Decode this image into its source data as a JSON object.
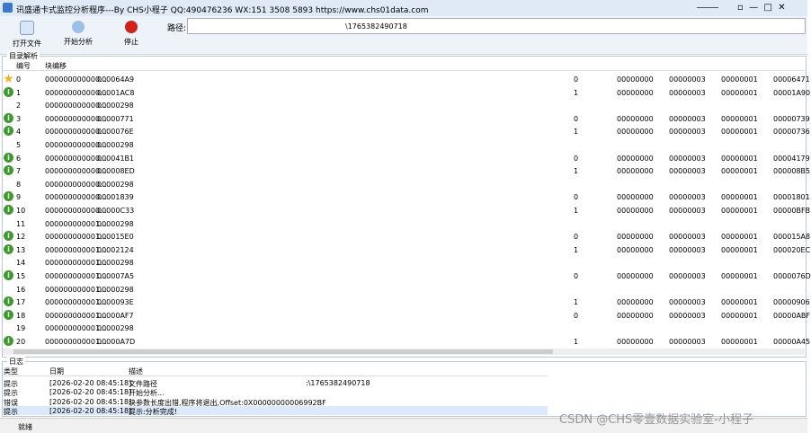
{
  "window": {
    "title": "讯盛通卡式监控分析程序---By CHS小程子 QQ:490476236 WX:151 3508 5893 https://www.chs01data.com"
  },
  "toolbar": {
    "buttons": [
      "打开文件",
      "开始分析",
      "停止"
    ],
    "path_label": "路径:",
    "path_value": "\\1765382490718"
  },
  "directory": {
    "title": "目录解析",
    "columns": [
      "编号",
      "块编移"
    ],
    "rows": [
      [
        "0",
        "000000000000...",
        "000064A9",
        "0",
        "00000000",
        "00000003",
        "00000001",
        "00006471"
      ],
      [
        "1",
        "000000000000...",
        "00001AC8",
        "1",
        "00000000",
        "00000003",
        "00000001",
        "00001A90"
      ],
      [
        "2",
        "000000000000...",
        "00000298"
      ],
      [
        "3",
        "000000000000...",
        "00000771",
        "0",
        "00000000",
        "00000003",
        "00000001",
        "00000739"
      ],
      [
        "4",
        "000000000000...",
        "0000076E",
        "1",
        "00000000",
        "00000003",
        "00000001",
        "00000736"
      ],
      [
        "5",
        "000000000000...",
        "00000298"
      ],
      [
        "6",
        "000000000000...",
        "000041B1",
        "0",
        "00000000",
        "00000003",
        "00000001",
        "00004179"
      ],
      [
        "7",
        "000000000000...",
        "000008ED",
        "1",
        "00000000",
        "00000003",
        "00000001",
        "000008B5"
      ],
      [
        "8",
        "000000000000...",
        "00000298"
      ],
      [
        "9",
        "000000000000...",
        "00001839",
        "0",
        "00000000",
        "00000003",
        "00000001",
        "00001801"
      ],
      [
        "10",
        "000000000000...",
        "00000C33",
        "1",
        "00000000",
        "00000003",
        "00000001",
        "00000BFB"
      ],
      [
        "11",
        "000000000001...",
        "00000298"
      ],
      [
        "12",
        "000000000001...",
        "000015E0",
        "0",
        "00000000",
        "00000003",
        "00000001",
        "000015A8"
      ],
      [
        "13",
        "000000000001...",
        "00002124",
        "1",
        "00000000",
        "00000003",
        "00000001",
        "000020EC"
      ],
      [
        "14",
        "000000000001...",
        "00000298"
      ],
      [
        "15",
        "000000000001...",
        "000007A5",
        "0",
        "00000000",
        "00000003",
        "00000001",
        "0000076D"
      ],
      [
        "16",
        "000000000001...",
        "00000298"
      ],
      [
        "17",
        "000000000001...",
        "0000093E",
        "1",
        "00000000",
        "00000003",
        "00000001",
        "00000906"
      ],
      [
        "18",
        "000000000001...",
        "00000AF7",
        "0",
        "00000000",
        "00000003",
        "00000001",
        "00000ABF"
      ],
      [
        "19",
        "000000000001...",
        "00000298"
      ],
      [
        "20",
        "000000000001...",
        "00000A7D",
        "1",
        "00000000",
        "00000003",
        "00000001",
        "00000A45"
      ]
    ]
  },
  "log": {
    "title": "日志",
    "columns": [
      "类型",
      "日期",
      "描述"
    ],
    "rows": [
      [
        "提示",
        "[2026-02-20 08:45:18]",
        "文件路径",
        ":\\1765382490718"
      ],
      [
        "提示",
        "[2026-02-20 08:45:18]",
        "开始分析..."
      ],
      [
        "错误",
        "[2026-02-20 08:45:18]",
        "块参数长度出错,程序将退出,Offset:0X00000000006992BF"
      ],
      [
        "提示",
        "[2026-02-20 08:45:18]",
        "提示:分析完成!"
      ]
    ]
  },
  "status": "就绪",
  "watermark": "CSDN @CHS零壹数据实验室-小程子"
}
